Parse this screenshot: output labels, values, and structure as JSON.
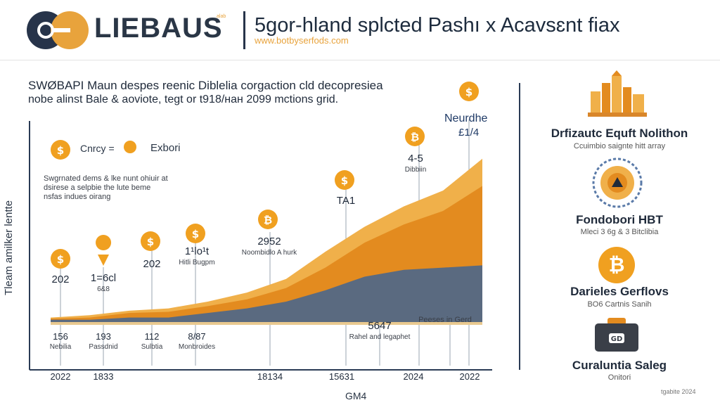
{
  "header": {
    "brand": "LIEBAUS",
    "brand_sub": "alab",
    "headline": "5gor-hland splcted Pashı x Acavsɛnt fiax",
    "url": "www.botbyserfods.com",
    "intro_line1": "SWØBAPI Maun despes reenic Diblelia corgaction cld decopresiea",
    "intro_line2": "nobe alinst Bale & aoviote, tegt or t918/нан 2099 mctions grid."
  },
  "legend": {
    "text_a": "Cnrcy =",
    "text_b": "Exbori"
  },
  "note": "Swgrnated dems & lke nunt ohiuir at dsirese a selpbie the lute beme nsfas indues oirang",
  "chart_data": {
    "type": "area",
    "title": "",
    "xlabel": "GM4",
    "ylabel": "Tleam amilker lentte",
    "x_tick_labels": [
      "2022",
      "1833",
      "18134",
      "15631",
      "2024",
      "2022"
    ],
    "x": [
      0,
      1,
      2,
      3,
      4,
      5,
      6,
      7,
      8,
      9,
      10,
      11
    ],
    "series": [
      {
        "color": "#f0b04a",
        "values": [
          2,
          3,
          5,
          6,
          9,
          13,
          19,
          31,
          42,
          51,
          58,
          72
        ]
      },
      {
        "color": "#e38b1f",
        "values": [
          1.5,
          2,
          4,
          4.5,
          7,
          10,
          15,
          24,
          35,
          43,
          49,
          60
        ]
      },
      {
        "color": "#5a6a80",
        "values": [
          1,
          1,
          2,
          2,
          4,
          6,
          9,
          14,
          20,
          23,
          24,
          25
        ]
      }
    ],
    "ylim": [
      0,
      80
    ],
    "annotations": [
      {
        "value_label": "202",
        "sub": "",
        "bottom_value": "156",
        "bottom_label": "Nebilia"
      },
      {
        "value_label": "1=6cl",
        "sub": "6&8",
        "bottom_value": "193",
        "bottom_label": "Passdnid"
      },
      {
        "value_label": "202",
        "sub": "",
        "bottom_value": "112",
        "bottom_label": "Sulbtia"
      },
      {
        "value_label": "1¹lo¹t",
        "sub": "Hitli Bugpm",
        "bottom_value": "8/87",
        "bottom_label": "Monbroides"
      },
      {
        "value_label": "2952",
        "sub": "Noombidlo A hurk",
        "bottom_value": "",
        "bottom_label": ""
      },
      {
        "value_label": "TA1",
        "sub": "",
        "bottom_value": "",
        "bottom_label": ""
      },
      {
        "value_label": "5647",
        "sub": "Rahel and legaphet",
        "bottom_value": "",
        "bottom_label": ""
      },
      {
        "value_label": "4-5",
        "sub": "Dibbiin",
        "bottom_value": "",
        "bottom_label": ""
      },
      {
        "value_label": "Neurdhe",
        "sub": "£1/4",
        "bottom_value": "",
        "bottom_label": ""
      },
      {
        "value_label": "",
        "sub": "Peeses in Gerd",
        "bottom_value": "",
        "bottom_label": ""
      }
    ],
    "grid": false,
    "legend": "top-left"
  },
  "right_panel": {
    "items": [
      {
        "title": "Drfizautc Equft Nolithon",
        "sub": "Ccuimbio saignte hitt array",
        "icon": "city-icon"
      },
      {
        "title": "Fondobori HBT",
        "sub": "Mleci 3 6g & 3 Bitclibia",
        "icon": "clock-icon"
      },
      {
        "title": "Darieles Gerflovs",
        "sub": "BO6 Cartnis Sanih",
        "icon": "bitcoin-icon"
      },
      {
        "title": "Curaluntia Saleg",
        "sub": "Onitori",
        "icon": "wallet-icon"
      }
    ]
  },
  "corner_text": "tgabite 2024",
  "colors": {
    "accent": "#e8a33c",
    "orange_dark": "#e38b1f",
    "slate": "#5a6a80",
    "navy": "#27344a"
  }
}
